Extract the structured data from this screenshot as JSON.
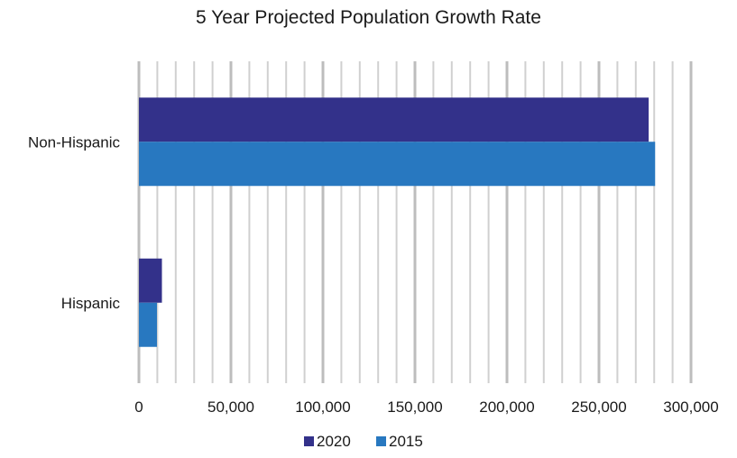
{
  "chart_data": {
    "type": "bar",
    "orientation": "horizontal",
    "title": "5 Year Projected Population Growth Rate",
    "xlabel": "",
    "ylabel": "",
    "categories": [
      "Non-Hispanic",
      "Hispanic"
    ],
    "series": [
      {
        "name": "2020",
        "color": "#33318a",
        "values": [
          277000,
          12500
        ]
      },
      {
        "name": "2015",
        "color": "#2878c0",
        "values": [
          280500,
          9800
        ]
      }
    ],
    "xlim": [
      0,
      300000
    ],
    "xticks": [
      0,
      50000,
      100000,
      150000,
      200000,
      250000,
      300000
    ],
    "xtick_labels": [
      "0",
      "50,000",
      "100,000",
      "150,000",
      "200,000",
      "250,000",
      "300,000"
    ],
    "grid": "vertical",
    "legend_position": "bottom"
  }
}
